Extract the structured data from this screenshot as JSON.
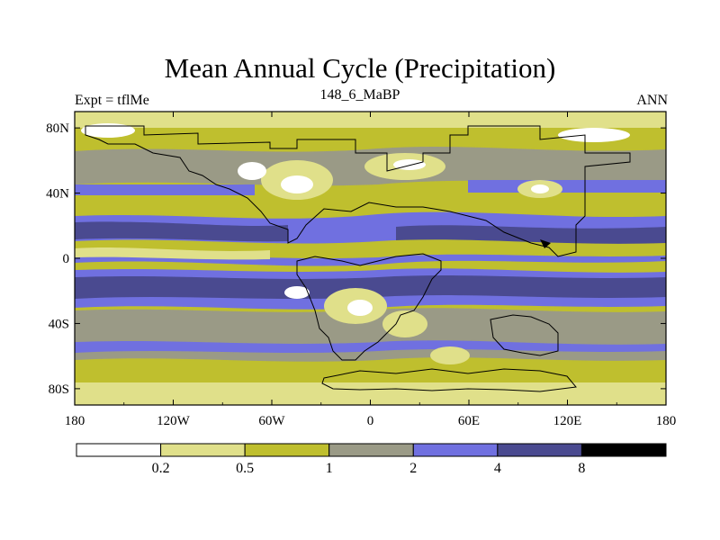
{
  "title": "Mean Annual Cycle (Precipitation)",
  "left_label": "Expt = tflMe",
  "center_label": "148_6_MaBP",
  "right_label": "ANN",
  "x_ticks": [
    "180",
    "120W",
    "60W",
    "0",
    "60E",
    "120E",
    "180"
  ],
  "y_ticks": [
    "80N",
    "40N",
    "0",
    "40S",
    "80S"
  ],
  "colorbar": {
    "colors": [
      "#ffffff",
      "#e0e08a",
      "#bfbf2e",
      "#9a9a86",
      "#7070e0",
      "#4a4a90",
      "#000000"
    ],
    "labels": [
      "0.2",
      "0.5",
      "1",
      "2",
      "4",
      "8"
    ]
  }
}
